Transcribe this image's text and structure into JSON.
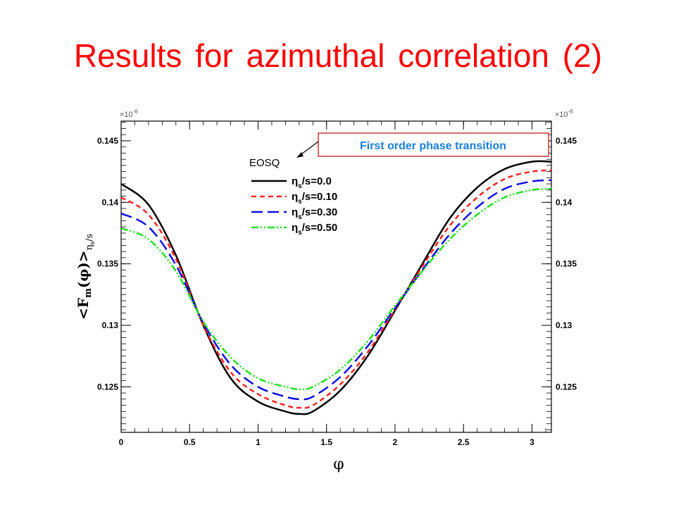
{
  "slide": {
    "title": "Results for azimuthal correlation (2)"
  },
  "chart_data": {
    "type": "line",
    "xlabel": "φ",
    "ylabel_prefix": "<F",
    "ylabel_sub": "m",
    "ylabel_mid": "(φ)>",
    "ylabel_subscript": "η",
    "ylabel_subscript_sub": "s",
    "ylabel_subscript_tail": "/s",
    "xlim": [
      0,
      3.1416
    ],
    "ylim": [
      0.1213,
      0.1466
    ],
    "y_multiplier_label": "×10",
    "y_multiplier_exp": "-6",
    "x_ticks": [
      "0",
      "0.5",
      "1",
      "1.5",
      "2",
      "2.5",
      "3"
    ],
    "x_tick_values": [
      0,
      0.5,
      1,
      1.5,
      2,
      2.5,
      3
    ],
    "y_ticks": [
      "0.125",
      "0.13",
      "0.135",
      "0.14",
      "0.145"
    ],
    "y_tick_values": [
      0.125,
      0.13,
      0.135,
      0.14,
      0.145
    ],
    "legend_title": "EOSQ",
    "legend_position": "top-center",
    "annotation": {
      "text": "First order phase transition",
      "color": "#1a7fe0",
      "border": "#cc0000"
    },
    "x": [
      0,
      0.2,
      0.4,
      0.6,
      0.8,
      1.0,
      1.2,
      1.3,
      1.4,
      1.6,
      1.8,
      2.0,
      2.2,
      2.4,
      2.6,
      2.8,
      3.0,
      3.1416
    ],
    "series": [
      {
        "name_prefix": "η",
        "name_sub": "s",
        "name_tail": "/s=0.0",
        "color": "#000000",
        "dash": "solid",
        "values": [
          0.1415,
          0.1398,
          0.1357,
          0.13,
          0.1257,
          0.1238,
          0.123,
          0.1228,
          0.123,
          0.1247,
          0.1275,
          0.1312,
          0.135,
          0.1387,
          0.1412,
          0.1427,
          0.1433,
          0.1433
        ]
      },
      {
        "name_prefix": "η",
        "name_sub": "s",
        "name_tail": "/s=0.10",
        "color": "#ff2020",
        "dash": "dashed",
        "values": [
          0.1404,
          0.139,
          0.1354,
          0.13,
          0.1262,
          0.1244,
          0.1235,
          0.1233,
          0.1235,
          0.1252,
          0.1278,
          0.1313,
          0.1348,
          0.1381,
          0.1404,
          0.1419,
          0.1425,
          0.1426
        ]
      },
      {
        "name_prefix": "η",
        "name_sub": "s",
        "name_tail": "/s=0.30",
        "color": "#1010e0",
        "dash": "longdash",
        "values": [
          0.1391,
          0.138,
          0.1349,
          0.1302,
          0.1268,
          0.125,
          0.1242,
          0.124,
          0.1242,
          0.1258,
          0.1283,
          0.1314,
          0.1345,
          0.1374,
          0.1396,
          0.1411,
          0.1417,
          0.1418
        ]
      },
      {
        "name_prefix": "η",
        "name_sub": "s",
        "name_tail": "/s=0.50",
        "color": "#20e020",
        "dash": "dashdotdot",
        "values": [
          0.1379,
          0.137,
          0.1344,
          0.1303,
          0.1274,
          0.1257,
          0.125,
          0.1248,
          0.125,
          0.1264,
          0.1287,
          0.1316,
          0.1344,
          0.137,
          0.139,
          0.1404,
          0.141,
          0.1411
        ]
      }
    ]
  }
}
